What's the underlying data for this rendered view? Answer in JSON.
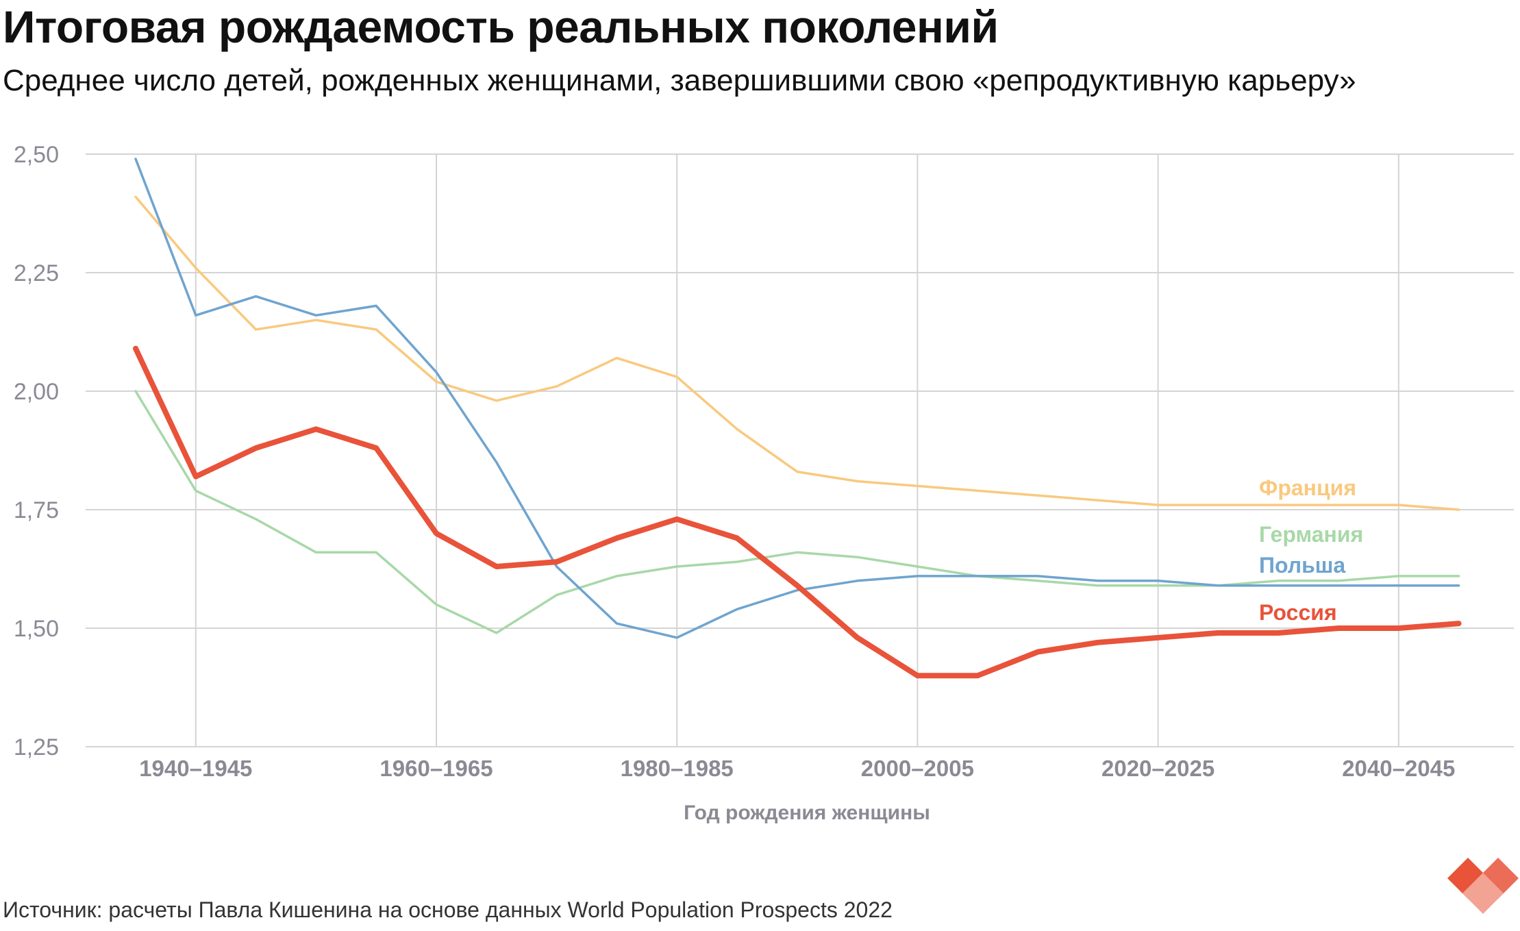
{
  "header": {
    "title": "Итоговая рождаемость реальных поколений",
    "subtitle": "Среднее число детей, рожденных женщинами, завершившими свою «репродуктивную карьеру»"
  },
  "footer": {
    "source": "Источник: расчеты Павла Кишенина на основе данных World Population Prospects 2022"
  },
  "chart_data": {
    "type": "line",
    "title": "Итоговая рождаемость реальных поколений",
    "subtitle": "Среднее число детей, рожденных женщинами, завершившими свою «репродуктивную карьеру»",
    "xlabel": "Год рождения женщины",
    "ylabel": "",
    "ylim": [
      1.25,
      2.5
    ],
    "grid": true,
    "x": [
      "1935–1940",
      "1940–1945",
      "1945–1950",
      "1950–1955",
      "1955–1960",
      "1960–1965",
      "1965–1970",
      "1970–1975",
      "1975–1980",
      "1980–1985",
      "1985–1990",
      "1990–1995",
      "1995–2000",
      "2000–2005",
      "2005–2010",
      "2010–2015",
      "2015–2020",
      "2020–2025",
      "2025–2030",
      "2030–2035",
      "2035–2040",
      "2040–2045",
      "2045–2050"
    ],
    "x_tick_labels": [
      "1940–1945",
      "1960–1965",
      "1980–1985",
      "2000–2005",
      "2020–2025",
      "2040–2045"
    ],
    "y_ticks": [
      2.5,
      2.25,
      2.0,
      1.75,
      1.5,
      1.25
    ],
    "y_tick_labels": [
      "2,50",
      "2,25",
      "2,00",
      "1,75",
      "1,50",
      "1,25"
    ],
    "series": [
      {
        "name": "Франция",
        "color": "#f9c97f",
        "values": [
          2.41,
          2.26,
          2.13,
          2.15,
          2.13,
          2.02,
          1.98,
          2.01,
          2.07,
          2.03,
          1.92,
          1.83,
          1.81,
          1.8,
          1.79,
          1.78,
          1.77,
          1.76,
          1.76,
          1.76,
          1.76,
          1.76,
          1.75
        ]
      },
      {
        "name": "Германия",
        "color": "#a8d8a8",
        "values": [
          2.0,
          1.79,
          1.73,
          1.66,
          1.66,
          1.55,
          1.49,
          1.57,
          1.61,
          1.63,
          1.64,
          1.66,
          1.65,
          1.63,
          1.61,
          1.6,
          1.59,
          1.59,
          1.59,
          1.6,
          1.6,
          1.61,
          1.61
        ]
      },
      {
        "name": "Польша",
        "color": "#6fa4cf",
        "values": [
          2.49,
          2.16,
          2.2,
          2.16,
          2.18,
          2.04,
          1.85,
          1.63,
          1.51,
          1.48,
          1.54,
          1.58,
          1.6,
          1.61,
          1.61,
          1.61,
          1.6,
          1.6,
          1.59,
          1.59,
          1.59,
          1.59,
          1.59
        ]
      },
      {
        "name": "Россия",
        "color": "#e8533a",
        "values": [
          2.09,
          1.82,
          1.88,
          1.92,
          1.88,
          1.7,
          1.63,
          1.64,
          1.69,
          1.73,
          1.69,
          1.59,
          1.48,
          1.4,
          1.4,
          1.45,
          1.47,
          1.48,
          1.49,
          1.49,
          1.5,
          1.5,
          1.51
        ]
      }
    ]
  }
}
